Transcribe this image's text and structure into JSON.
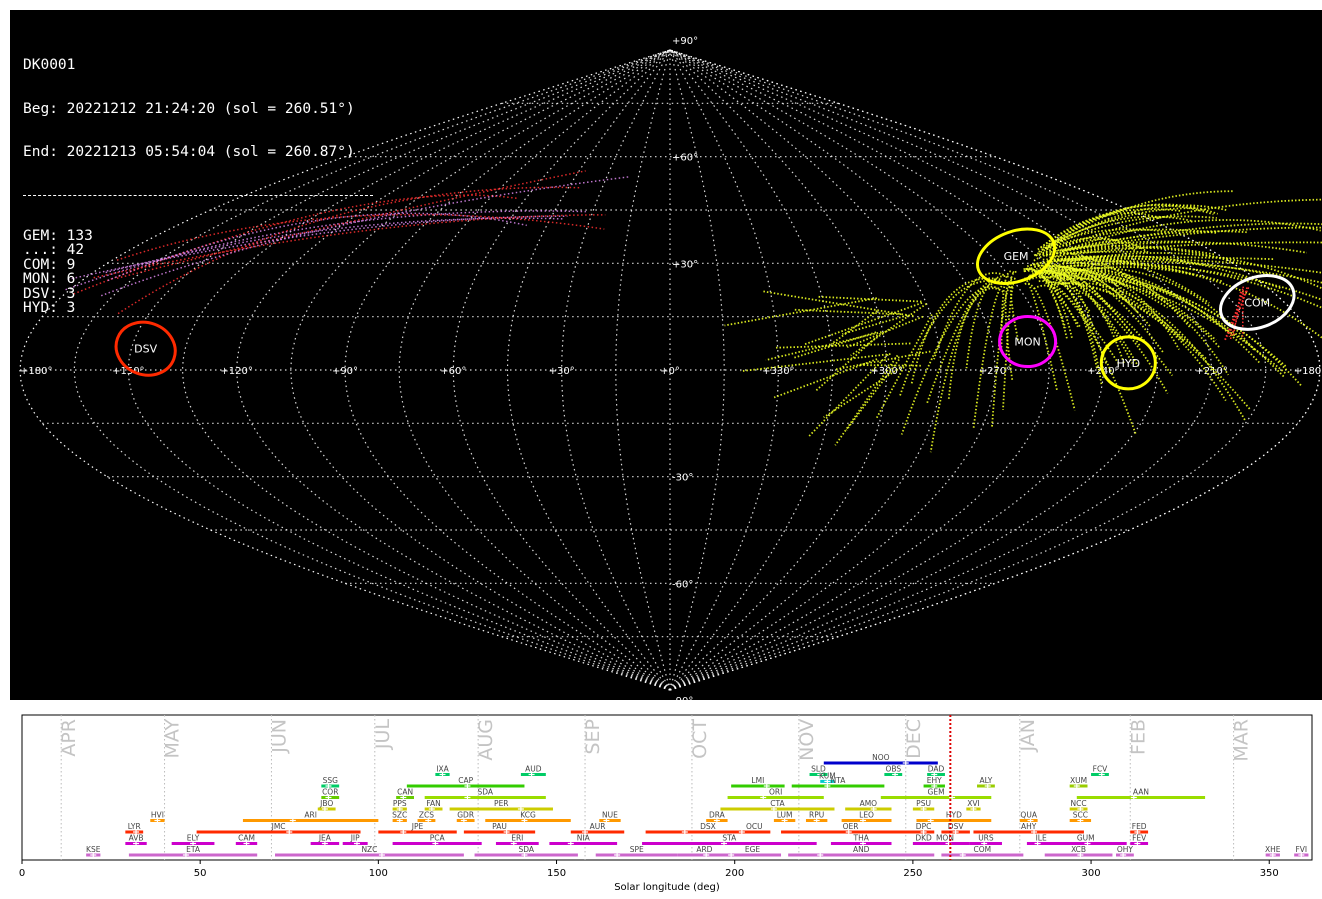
{
  "station": "DK0001",
  "begin": "Beg: 20221212 21:24:20 (sol = 260.51°)",
  "end": "End: 20221213 05:54:04 (sol = 260.87°)",
  "counts": [
    {
      "name": "GEM",
      "count": 133
    },
    {
      "name": "...",
      "count": 42
    },
    {
      "name": "COM",
      "count": 9
    },
    {
      "name": "MON",
      "count": 6
    },
    {
      "name": "DSV",
      "count": 3
    },
    {
      "name": "HYD",
      "count": 3
    }
  ],
  "colors": {
    "background": "#000000",
    "grid": "#ffffff",
    "GEM": "#ffff00",
    "COM": "#ffffff",
    "MON": "#ff00ff",
    "DSV": "#ff2a00",
    "HYD": "#ffff00",
    "sporadic": "#ff2020"
  },
  "chart_data": [
    {
      "type": "scatter",
      "projection": "sinusoidal",
      "title": "",
      "ra_tick_labels": [
        "+180°",
        "+150°",
        "+120°",
        "+90°",
        "+60°",
        "+30°",
        "+0°",
        "+330°",
        "+300°",
        "+270°",
        "+240°",
        "+210°",
        "+180°"
      ],
      "dec_tick_labels": [
        "+90°",
        "+60°",
        "+30°",
        "-30°",
        "-60°",
        "-90°"
      ],
      "radiants": [
        {
          "name": "COM",
          "ra": 172,
          "dec": 19,
          "color": "#ffffff"
        },
        {
          "name": "GEM",
          "ra": 113,
          "dec": 32,
          "color": "#ffff00"
        },
        {
          "name": "MON",
          "ra": 100,
          "dec": 8,
          "color": "#ff00ff"
        },
        {
          "name": "HYD",
          "ra": 127,
          "dec": 2,
          "color": "#ffff00"
        },
        {
          "name": "DSV",
          "ra": 214,
          "dec": 6,
          "color": "#ff2a00"
        }
      ],
      "grid": true
    },
    {
      "type": "bar",
      "orientation": "horizontal-ranges",
      "xlabel": "Solar longitude (deg)",
      "xlim": [
        0,
        362
      ],
      "xticks": [
        0,
        50,
        100,
        150,
        200,
        250,
        300,
        350
      ],
      "current_sol": 260.51,
      "months": [
        {
          "label": "APR",
          "sol": 11
        },
        {
          "label": "MAY",
          "sol": 40
        },
        {
          "label": "JUN",
          "sol": 70
        },
        {
          "label": "JUL",
          "sol": 99
        },
        {
          "label": "AUG",
          "sol": 128
        },
        {
          "label": "SEP",
          "sol": 158
        },
        {
          "label": "OCT",
          "sol": 188
        },
        {
          "label": "NOV",
          "sol": 218
        },
        {
          "label": "DEC",
          "sol": 248
        },
        {
          "label": "JAN",
          "sol": 280
        },
        {
          "label": "FEB",
          "sol": 311
        },
        {
          "label": "MAR",
          "sol": 340
        }
      ],
      "showers": [
        {
          "code": "NOO",
          "start": 225,
          "end": 257,
          "peak": 248,
          "row": 8,
          "color": "#0000cc"
        },
        {
          "code": "IXA",
          "start": 116,
          "end": 120,
          "peak": 118,
          "row": 7,
          "color": "#00cc66"
        },
        {
          "code": "AUD",
          "start": 140,
          "end": 147,
          "peak": 143,
          "row": 7,
          "color": "#00cc66"
        },
        {
          "code": "SLD",
          "start": 221,
          "end": 226,
          "peak": 224,
          "row": 7,
          "color": "#00cc66"
        },
        {
          "code": "OBS",
          "start": 242,
          "end": 247,
          "peak": 245,
          "row": 7,
          "color": "#00cc66"
        },
        {
          "code": "DAD",
          "start": 254,
          "end": 259,
          "peak": 256,
          "row": 7,
          "color": "#00cc66"
        },
        {
          "code": "FCV",
          "start": 300,
          "end": 305,
          "peak": 303,
          "row": 7,
          "color": "#00cc66"
        },
        {
          "code": "KUM",
          "start": 224,
          "end": 228,
          "peak": 226,
          "row": 6.4,
          "color": "#00cccc"
        },
        {
          "code": "SSG",
          "start": 84,
          "end": 89,
          "peak": 86,
          "row": 6,
          "color": "#00cc66"
        },
        {
          "code": "CAP",
          "start": 108,
          "end": 141,
          "peak": 125,
          "row": 6,
          "color": "#33cc00"
        },
        {
          "code": "LMI",
          "start": 199,
          "end": 214,
          "peak": 209,
          "row": 6,
          "color": "#33cc00"
        },
        {
          "code": "NTA",
          "start": 216,
          "end": 242,
          "peak": 226,
          "row": 6,
          "color": "#33cc00"
        },
        {
          "code": "EHY",
          "start": 253,
          "end": 259,
          "peak": 256,
          "row": 6,
          "color": "#33cc00"
        },
        {
          "code": "ALY",
          "start": 268,
          "end": 273,
          "peak": 271,
          "row": 6,
          "color": "#99cc00"
        },
        {
          "code": "XUM",
          "start": 294,
          "end": 299,
          "peak": 296,
          "row": 6,
          "color": "#99cc00"
        },
        {
          "code": "COR",
          "start": 84,
          "end": 89,
          "peak": 86,
          "row": 5,
          "color": "#66cc00"
        },
        {
          "code": "CAN",
          "start": 105,
          "end": 110,
          "peak": 107,
          "row": 5,
          "color": "#66cc00"
        },
        {
          "code": "SDA",
          "start": 113,
          "end": 147,
          "peak": 125,
          "row": 5,
          "color": "#99dd00"
        },
        {
          "code": "ORI",
          "start": 198,
          "end": 225,
          "peak": 208,
          "row": 5,
          "color": "#99dd00"
        },
        {
          "code": "GEM",
          "start": 241,
          "end": 272,
          "peak": 261,
          "row": 5,
          "color": "#99dd00"
        },
        {
          "code": "AAN",
          "start": 296,
          "end": 332,
          "peak": 312,
          "row": 5,
          "color": "#99dd00"
        },
        {
          "code": "JBO",
          "start": 83,
          "end": 88,
          "peak": 85,
          "row": 4,
          "color": "#cccc00"
        },
        {
          "code": "PPS",
          "start": 104,
          "end": 108,
          "peak": 106,
          "row": 4,
          "color": "#cccc00"
        },
        {
          "code": "FAN",
          "start": 113,
          "end": 118,
          "peak": 115,
          "row": 4,
          "color": "#cccc00"
        },
        {
          "code": "PER",
          "start": 120,
          "end": 149,
          "peak": 140,
          "row": 4,
          "color": "#cccc00"
        },
        {
          "code": "CTA",
          "start": 196,
          "end": 228,
          "peak": 211,
          "row": 4,
          "color": "#cccc00"
        },
        {
          "code": "AMO",
          "start": 231,
          "end": 244,
          "peak": 239,
          "row": 4,
          "color": "#cccc00"
        },
        {
          "code": "PSU",
          "start": 250,
          "end": 256,
          "peak": 253,
          "row": 4,
          "color": "#cccc00"
        },
        {
          "code": "XVI",
          "start": 265,
          "end": 269,
          "peak": 267,
          "row": 4,
          "color": "#cccc00"
        },
        {
          "code": "NCC",
          "start": 294,
          "end": 299,
          "peak": 297,
          "row": 4,
          "color": "#cccc00"
        },
        {
          "code": "HVI",
          "start": 36,
          "end": 40,
          "peak": 38,
          "row": 3,
          "color": "#ff9900"
        },
        {
          "code": "ARI",
          "start": 62,
          "end": 100,
          "peak": 76,
          "row": 3,
          "color": "#ff9900"
        },
        {
          "code": "SZC",
          "start": 104,
          "end": 108,
          "peak": 106,
          "row": 3,
          "color": "#ff9900"
        },
        {
          "code": "ZCS",
          "start": 111,
          "end": 116,
          "peak": 114,
          "row": 3,
          "color": "#ff9900"
        },
        {
          "code": "GDR",
          "start": 122,
          "end": 127,
          "peak": 124,
          "row": 3,
          "color": "#ff9900"
        },
        {
          "code": "KCG",
          "start": 130,
          "end": 154,
          "peak": 141,
          "row": 3,
          "color": "#ff9900"
        },
        {
          "code": "NUE",
          "start": 162,
          "end": 168,
          "peak": 164,
          "row": 3,
          "color": "#ff9900"
        },
        {
          "code": "DRA",
          "start": 192,
          "end": 198,
          "peak": 195,
          "row": 3,
          "color": "#ff9900"
        },
        {
          "code": "LUM",
          "start": 211,
          "end": 217,
          "peak": 214,
          "row": 3,
          "color": "#ff9900"
        },
        {
          "code": "RPU",
          "start": 220,
          "end": 226,
          "peak": 223,
          "row": 3,
          "color": "#ff9900"
        },
        {
          "code": "LEO",
          "start": 230,
          "end": 244,
          "peak": 236,
          "row": 3,
          "color": "#ff9900"
        },
        {
          "code": "HYD",
          "start": 251,
          "end": 272,
          "peak": 255,
          "row": 3,
          "color": "#ff9900"
        },
        {
          "code": "QUA",
          "start": 280,
          "end": 285,
          "peak": 283,
          "row": 3,
          "color": "#ff9900"
        },
        {
          "code": "SCC",
          "start": 294,
          "end": 300,
          "peak": 297,
          "row": 3,
          "color": "#ff9900"
        },
        {
          "code": "LYR",
          "start": 29,
          "end": 34,
          "peak": 32,
          "row": 2,
          "color": "#ff2a00"
        },
        {
          "code": "JMC",
          "start": 49,
          "end": 95,
          "peak": 75,
          "row": 2,
          "color": "#ff2a00"
        },
        {
          "code": "JPE",
          "start": 100,
          "end": 122,
          "peak": 107,
          "row": 2,
          "color": "#ff2a00"
        },
        {
          "code": "PAU",
          "start": 124,
          "end": 144,
          "peak": 136,
          "row": 2,
          "color": "#ff2a00"
        },
        {
          "code": "AUR",
          "start": 154,
          "end": 169,
          "peak": 158,
          "row": 2,
          "color": "#ff2a00"
        },
        {
          "code": "DSX",
          "start": 175,
          "end": 210,
          "peak": 186,
          "row": 2,
          "color": "#ff2a00"
        },
        {
          "code": "OCU",
          "start": 202,
          "end": 209,
          "peak": 202,
          "row": 2,
          "color": "#ff2a00"
        },
        {
          "code": "OER",
          "start": 213,
          "end": 252,
          "peak": 232,
          "row": 2,
          "color": "#ff2a00"
        },
        {
          "code": "DPC",
          "start": 250,
          "end": 256,
          "peak": 253,
          "row": 2,
          "color": "#ff2a00"
        },
        {
          "code": "DSV",
          "start": 258,
          "end": 266,
          "peak": 262,
          "row": 2,
          "color": "#ff2a00"
        },
        {
          "code": "AHY",
          "start": 267,
          "end": 298,
          "peak": 284,
          "row": 2,
          "color": "#ff2a00"
        },
        {
          "code": "FED",
          "start": 311,
          "end": 316,
          "peak": 313,
          "row": 2,
          "color": "#ff2a00"
        },
        {
          "code": "AVB",
          "start": 29,
          "end": 35,
          "peak": 32,
          "row": 1,
          "color": "#cc00cc"
        },
        {
          "code": "ELY",
          "start": 42,
          "end": 54,
          "peak": 48,
          "row": 1,
          "color": "#cc00cc"
        },
        {
          "code": "CAM",
          "start": 60,
          "end": 66,
          "peak": 63,
          "row": 1,
          "color": "#cc00cc"
        },
        {
          "code": "JEA",
          "start": 81,
          "end": 89,
          "peak": 85,
          "row": 1,
          "color": "#cc00cc"
        },
        {
          "code": "JIP",
          "start": 90,
          "end": 97,
          "peak": 94,
          "row": 1,
          "color": "#cc00cc"
        },
        {
          "code": "PCA",
          "start": 104,
          "end": 129,
          "peak": 116,
          "row": 1,
          "color": "#cc00cc"
        },
        {
          "code": "ERI",
          "start": 133,
          "end": 145,
          "peak": 138,
          "row": 1,
          "color": "#cc00cc"
        },
        {
          "code": "NIA",
          "start": 148,
          "end": 167,
          "peak": 154,
          "row": 1,
          "color": "#cc00cc"
        },
        {
          "code": "STA",
          "start": 174,
          "end": 223,
          "peak": 197,
          "row": 1,
          "color": "#cc00cc"
        },
        {
          "code": "THA",
          "start": 227,
          "end": 244,
          "peak": 236,
          "row": 1,
          "color": "#cc00cc"
        },
        {
          "code": "DKD",
          "start": 250,
          "end": 256,
          "peak": 253,
          "row": 1,
          "color": "#cc00cc"
        },
        {
          "code": "MON",
          "start": 252,
          "end": 266,
          "peak": 260,
          "row": 1,
          "color": "#cc00cc"
        },
        {
          "code": "URS",
          "start": 266,
          "end": 275,
          "peak": 270,
          "row": 1,
          "color": "#cc00cc"
        },
        {
          "code": "ILE",
          "start": 282,
          "end": 290,
          "peak": 285,
          "row": 1,
          "color": "#cc00cc"
        },
        {
          "code": "GUM",
          "start": 287,
          "end": 310,
          "peak": 299,
          "row": 1,
          "color": "#cc00cc"
        },
        {
          "code": "FEV",
          "start": 311,
          "end": 316,
          "peak": 313,
          "row": 1,
          "color": "#cc00cc"
        },
        {
          "code": "KSE",
          "start": 18,
          "end": 22,
          "peak": 20,
          "row": 0,
          "color": "#cc66cc"
        },
        {
          "code": "ETA",
          "start": 30,
          "end": 66,
          "peak": 46,
          "row": 0,
          "color": "#cc66cc"
        },
        {
          "code": "NZC",
          "start": 71,
          "end": 124,
          "peak": 101,
          "row": 0,
          "color": "#cc66cc"
        },
        {
          "code": "SDA",
          "start": 127,
          "end": 156,
          "peak": 141,
          "row": 0,
          "color": "#cc66cc"
        },
        {
          "code": "SPE",
          "start": 161,
          "end": 184,
          "peak": 167,
          "row": 0,
          "color": "#cc66cc"
        },
        {
          "code": "ARD",
          "start": 184,
          "end": 199,
          "peak": 192,
          "row": 0,
          "color": "#cc66cc"
        },
        {
          "code": "EGE",
          "start": 197,
          "end": 213,
          "peak": 199,
          "row": 0,
          "color": "#cc66cc"
        },
        {
          "code": "AND",
          "start": 215,
          "end": 256,
          "peak": 224,
          "row": 0,
          "color": "#cc66cc"
        },
        {
          "code": "COM",
          "start": 258,
          "end": 281,
          "peak": 264,
          "row": 0,
          "color": "#cc66cc"
        },
        {
          "code": "XCB",
          "start": 287,
          "end": 306,
          "peak": 297,
          "row": 0,
          "color": "#cc66cc"
        },
        {
          "code": "OHY",
          "start": 307,
          "end": 312,
          "peak": 309,
          "row": 0,
          "color": "#cc66cc"
        },
        {
          "code": "XHE",
          "start": 349,
          "end": 353,
          "peak": 351,
          "row": 0,
          "color": "#cc66cc"
        },
        {
          "code": "FVI",
          "start": 357,
          "end": 361,
          "peak": 359,
          "row": 0,
          "color": "#cc66cc"
        }
      ]
    }
  ]
}
